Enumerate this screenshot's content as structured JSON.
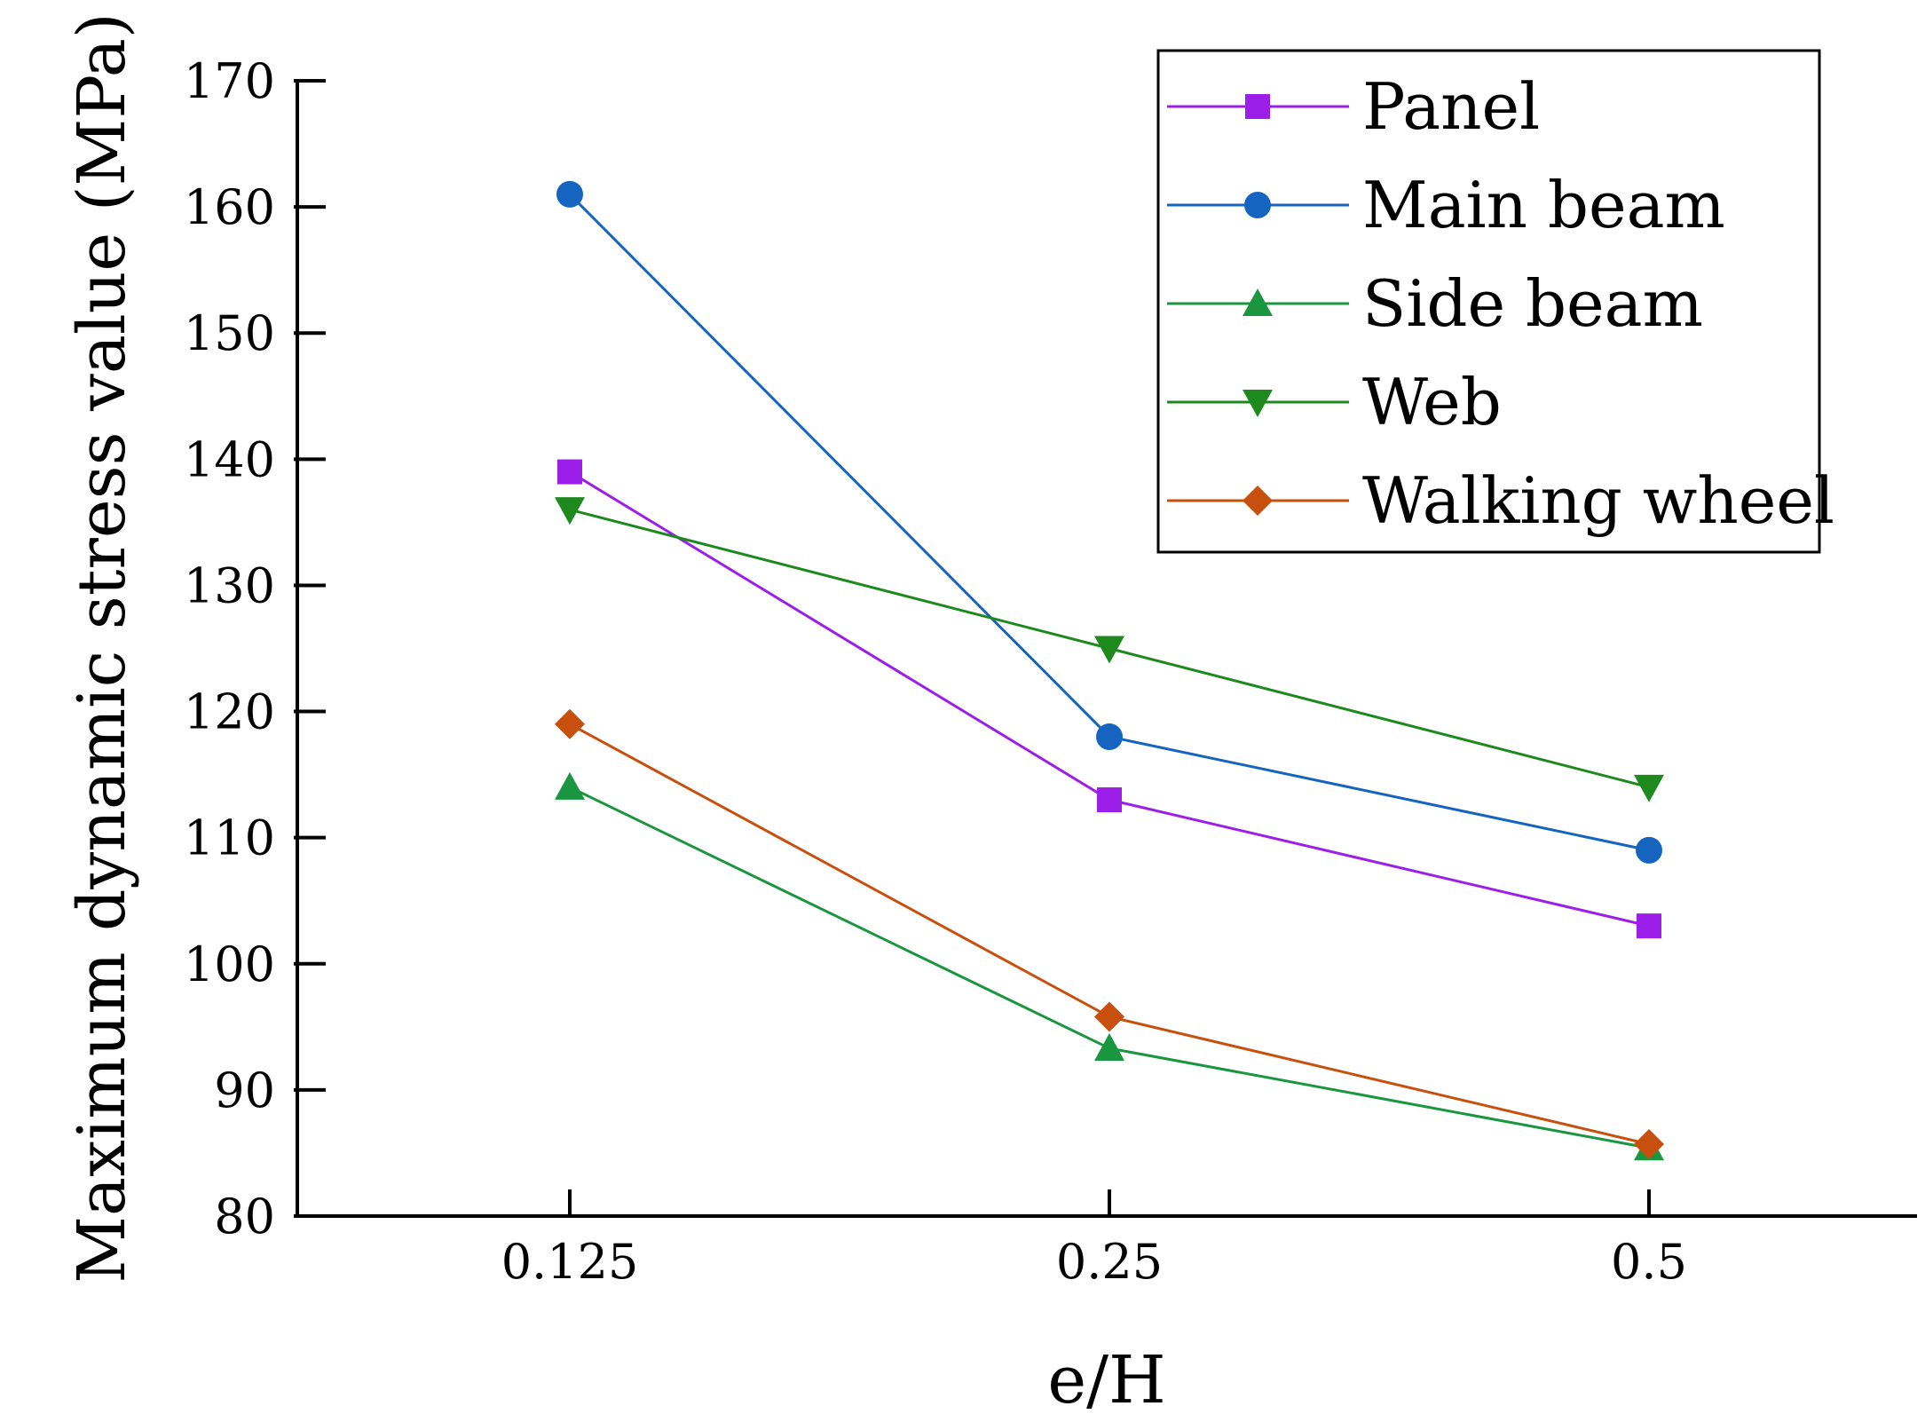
{
  "chart_data": {
    "type": "line",
    "title": "",
    "xlabel": "e/H",
    "ylabel": "Maximum dynamic stress value (MPa)",
    "categories": [
      "0.125",
      "0.25",
      "0.5"
    ],
    "ylim": [
      80,
      170
    ],
    "yticks": [
      80,
      90,
      100,
      110,
      120,
      130,
      140,
      150,
      160,
      170
    ],
    "grid": false,
    "legend_position": "top-right",
    "series": [
      {
        "name": "Panel",
        "values": [
          139,
          113,
          103
        ],
        "color": "#9B1FE8",
        "marker": "square"
      },
      {
        "name": "Main beam",
        "values": [
          161,
          118,
          109
        ],
        "color": "#1565C0",
        "marker": "circle"
      },
      {
        "name": "Side beam",
        "values": [
          114,
          93.3,
          85.4
        ],
        "color": "#1A9641",
        "marker": "triangle-up"
      },
      {
        "name": "Web",
        "values": [
          136,
          125,
          114
        ],
        "color": "#1E8A1E",
        "marker": "triangle-down"
      },
      {
        "name": "Walking wheel",
        "values": [
          119,
          95.8,
          85.7
        ],
        "color": "#C8500F",
        "marker": "diamond"
      }
    ]
  }
}
